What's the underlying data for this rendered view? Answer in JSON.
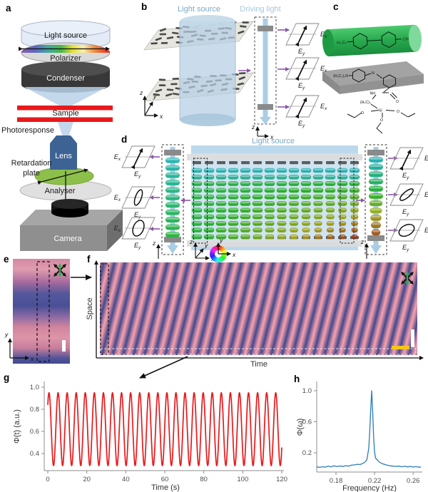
{
  "sym": {
    "E": "E",
    "x": "x",
    "y": "y",
    "z": "z"
  },
  "panels": {
    "a": {
      "label": "a",
      "light_source": "Light source",
      "polarizer": "Polarizer",
      "condenser": "Condenser",
      "sample": "Sample",
      "photoresponse": "Photoresponse",
      "lens": "Lens",
      "retardation1": "Retardation",
      "retardation2": "plate",
      "analyser": "Analyser",
      "camera": "Camera"
    },
    "b": {
      "label": "b",
      "light_source": "Light source",
      "driving_light": "Driving light"
    },
    "c": {
      "label": "c",
      "alkyl": "H₁₁C₅",
      "nitrile": "CN",
      "amine": "(H₅C₂)₂N",
      "n": "N",
      "nh": "NH",
      "o": "O",
      "propyl": "(H₂C)₃",
      "si": "Si"
    },
    "d": {
      "label": "d",
      "light_source": "Light source"
    },
    "e": {
      "label": "e"
    },
    "f": {
      "label": "f",
      "space_axis": "Space",
      "time_axis": "Time"
    },
    "g": {
      "label": "g"
    },
    "h": {
      "label": "h"
    }
  },
  "colors": {
    "sample_red": "#e8191c",
    "lens_blue": "#3d6394",
    "retardation_green": "#8cc04a",
    "beam_blue": "#a9cde5",
    "purple_arrow": "#8a56a8",
    "gray_bar": "#8a8a8a",
    "pink_stripe": "#eba6b2",
    "indigo_stripe": "#3d4b8f",
    "scalebar_white": "#ffffff",
    "scalebar_yellow": "#f5c518",
    "green_cylinder": "#28a94e",
    "trace_red": "#e8191c",
    "spectrum_blue": "#2b7bb5"
  },
  "chart_data": [
    {
      "id": "g",
      "type": "line",
      "xlabel": "Time (s)",
      "ylabel": "Φ(t) (a.u.)",
      "xlim": [
        0,
        120
      ],
      "ylim": [
        0.25,
        1.05
      ],
      "xticks": [
        "0",
        "20",
        "40",
        "60",
        "80",
        "100",
        "120"
      ],
      "yticks": [
        "0.4",
        "0.6",
        "0.8",
        "1.0"
      ],
      "grid": false,
      "legend": null,
      "line_color": "#e8191c",
      "value_range": [
        0.29,
        0.95
      ],
      "series": {
        "name": "Φ(t)",
        "waveform": "sine",
        "mean": 0.62,
        "amplitude": 0.33,
        "frequency_hz": 0.215,
        "phase_rad": 0.73,
        "t_start": 0,
        "t_end": 120,
        "dt": 0.1
      }
    },
    {
      "id": "h",
      "type": "line",
      "xlabel": "Frequency (Hz)",
      "ylabel": "Φ(ω)",
      "xlim": [
        0.16,
        0.268
      ],
      "ylim": [
        0,
        1.08
      ],
      "xticks": [
        "0.18",
        "0.22",
        "0.26"
      ],
      "yticks": [
        "0.2",
        "0.6",
        "1.0"
      ],
      "grid": false,
      "legend": null,
      "line_color": "#2b7bb5",
      "peak_frequency_hz": 0.217,
      "peak_value": 1.0,
      "points": [
        [
          0.16,
          0.018
        ],
        [
          0.163,
          0.012
        ],
        [
          0.166,
          0.02
        ],
        [
          0.169,
          0.015
        ],
        [
          0.172,
          0.028
        ],
        [
          0.175,
          0.02
        ],
        [
          0.178,
          0.032
        ],
        [
          0.181,
          0.022
        ],
        [
          0.184,
          0.03
        ],
        [
          0.187,
          0.023
        ],
        [
          0.19,
          0.034
        ],
        [
          0.193,
          0.028
        ],
        [
          0.196,
          0.04
        ],
        [
          0.199,
          0.044
        ],
        [
          0.202,
          0.052
        ],
        [
          0.205,
          0.048
        ],
        [
          0.208,
          0.065
        ],
        [
          0.21,
          0.08
        ],
        [
          0.212,
          0.11
        ],
        [
          0.214,
          0.26
        ],
        [
          0.215,
          0.49
        ],
        [
          0.216,
          0.76
        ],
        [
          0.217,
          1.0
        ],
        [
          0.218,
          0.74
        ],
        [
          0.219,
          0.4
        ],
        [
          0.22,
          0.21
        ],
        [
          0.221,
          0.13
        ],
        [
          0.222,
          0.12
        ],
        [
          0.223,
          0.105
        ],
        [
          0.224,
          0.09
        ],
        [
          0.226,
          0.072
        ],
        [
          0.228,
          0.06
        ],
        [
          0.23,
          0.052
        ],
        [
          0.233,
          0.04
        ],
        [
          0.236,
          0.032
        ],
        [
          0.239,
          0.028
        ],
        [
          0.242,
          0.024
        ],
        [
          0.245,
          0.028
        ],
        [
          0.248,
          0.02
        ],
        [
          0.251,
          0.026
        ],
        [
          0.254,
          0.018
        ],
        [
          0.257,
          0.024
        ],
        [
          0.26,
          0.016
        ],
        [
          0.263,
          0.022
        ],
        [
          0.266,
          0.014
        ],
        [
          0.268,
          0.018
        ]
      ]
    }
  ]
}
